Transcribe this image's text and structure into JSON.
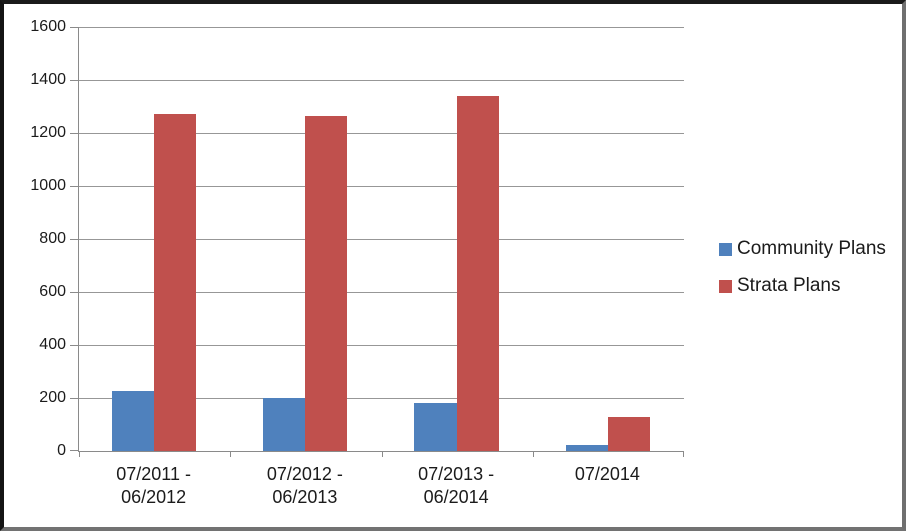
{
  "chart_data": {
    "type": "bar",
    "title": "",
    "categories": [
      {
        "lines": [
          "07/2011 -",
          "06/2012"
        ]
      },
      {
        "lines": [
          "07/2012 -",
          "06/2013"
        ]
      },
      {
        "lines": [
          "07/2013 -",
          "06/2014"
        ]
      },
      {
        "lines": [
          "07/2014"
        ]
      }
    ],
    "series": [
      {
        "name": "Community Plans",
        "color": "#4F81BD",
        "values": [
          228,
          200,
          183,
          24
        ]
      },
      {
        "name": "Strata Plans",
        "color": "#C0504D",
        "values": [
          1272,
          1266,
          1338,
          128
        ]
      }
    ],
    "xlabel": "",
    "ylabel": "",
    "ylim": [
      0,
      1600
    ],
    "ytick_step": 200,
    "yticks": [
      0,
      200,
      400,
      600,
      800,
      1000,
      1200,
      1400,
      1600
    ],
    "grid": true,
    "legend_position": "right"
  },
  "colors": {
    "series_blue": "#4F81BD",
    "series_red": "#C0504D",
    "gridline": "#979797",
    "axis": "#8A8A8A",
    "text": "#1B1B1B",
    "background": "#FFFFFF",
    "frame_dark": "#141414",
    "frame_gray": "#6F6F6F"
  }
}
